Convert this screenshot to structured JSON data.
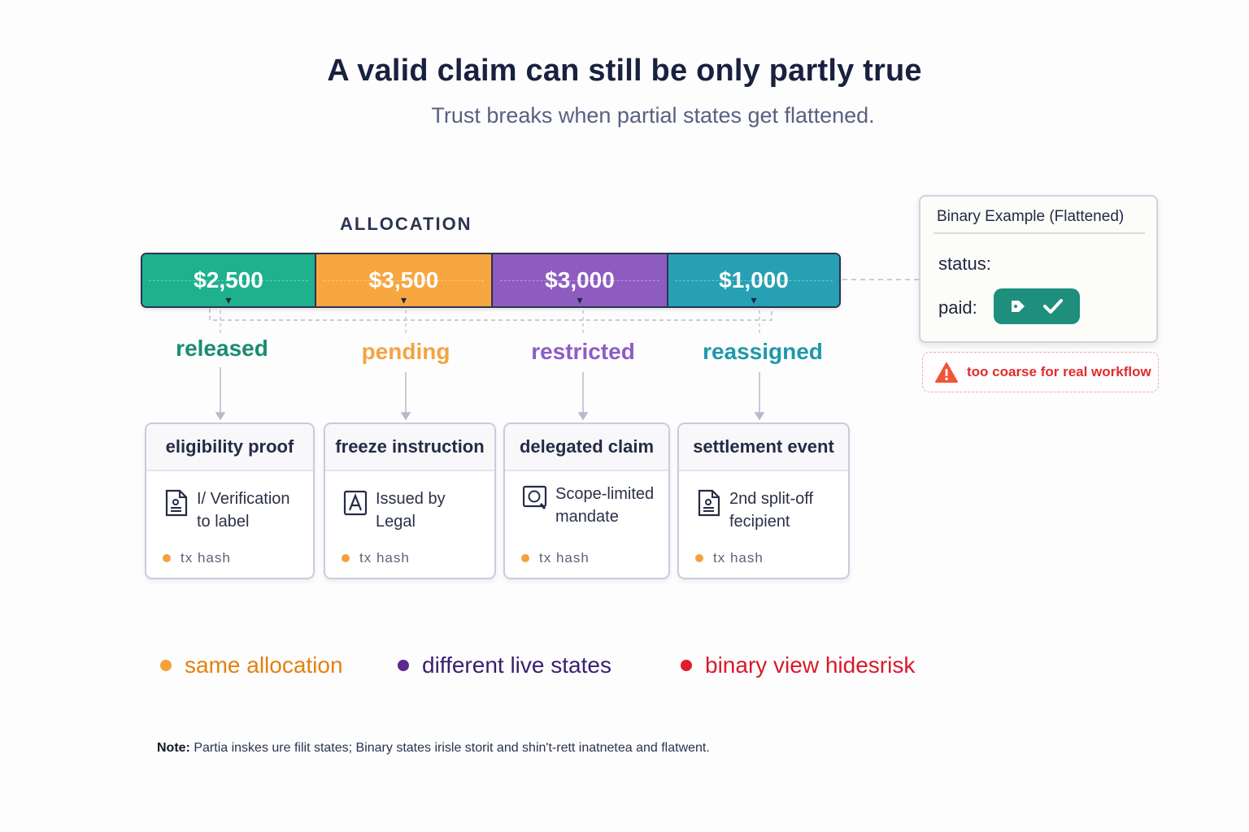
{
  "title": "A valid claim can still be only partly true",
  "subtitle": "Trust breaks when partial states get flattened.",
  "allocation_label": "ALLOCATION",
  "segments": [
    {
      "amount": "$2,500",
      "state": "released",
      "color": "#1fb08e",
      "state_color": "#1a8c72"
    },
    {
      "amount": "$3,500",
      "state": "pending",
      "color": "#f8a640",
      "state_color": "#f4a442"
    },
    {
      "amount": "$3,000",
      "state": "restricted",
      "color": "#8e5cc0",
      "state_color": "#8d5cc4"
    },
    {
      "amount": "$1,000",
      "state": "reassigned",
      "color": "#27a0b4",
      "state_color": "#1f98aa"
    }
  ],
  "cards": [
    {
      "title": "eligibility proof",
      "icon": "document-icon",
      "text1": "I/ Verification",
      "text2": "to label",
      "tx": "tx hash"
    },
    {
      "title": "freeze instruction",
      "icon": "legal-icon",
      "text1": "Issued by",
      "text2": "Legal",
      "tx": "tx hash"
    },
    {
      "title": "delegated claim",
      "icon": "seal-icon",
      "text1": "Scope-limited",
      "text2": "mandate",
      "tx": "tx hash"
    },
    {
      "title": "settlement event",
      "icon": "document-icon",
      "text1": "2nd split-off",
      "text2": "fecipient",
      "tx": "tx hash"
    }
  ],
  "binary": {
    "title": "Binary Example (Flattened)",
    "status_label": "status:",
    "paid_label": "paid:",
    "button_color": "#1e8f7c",
    "button_icons": [
      "tag-icon",
      "check-icon"
    ]
  },
  "warning": {
    "text": "too coarse for real workflow",
    "icon": "warning-icon",
    "color": "#e02c2c"
  },
  "legend": [
    {
      "label": "same allocation",
      "color": "#f5a13c",
      "text_color": "#e5800e"
    },
    {
      "label": "different live states",
      "color": "#5b2b8e",
      "text_color": "#3a1f6e"
    },
    {
      "label": "binary view hidesrisk",
      "color": "#e11d2a",
      "text_color": "#d9192a"
    }
  ],
  "note": {
    "label": "Note:",
    "text": "Partia inskes ure filit states; Binary states irisle storit and shin't-rett inatnetea and flatwent."
  }
}
